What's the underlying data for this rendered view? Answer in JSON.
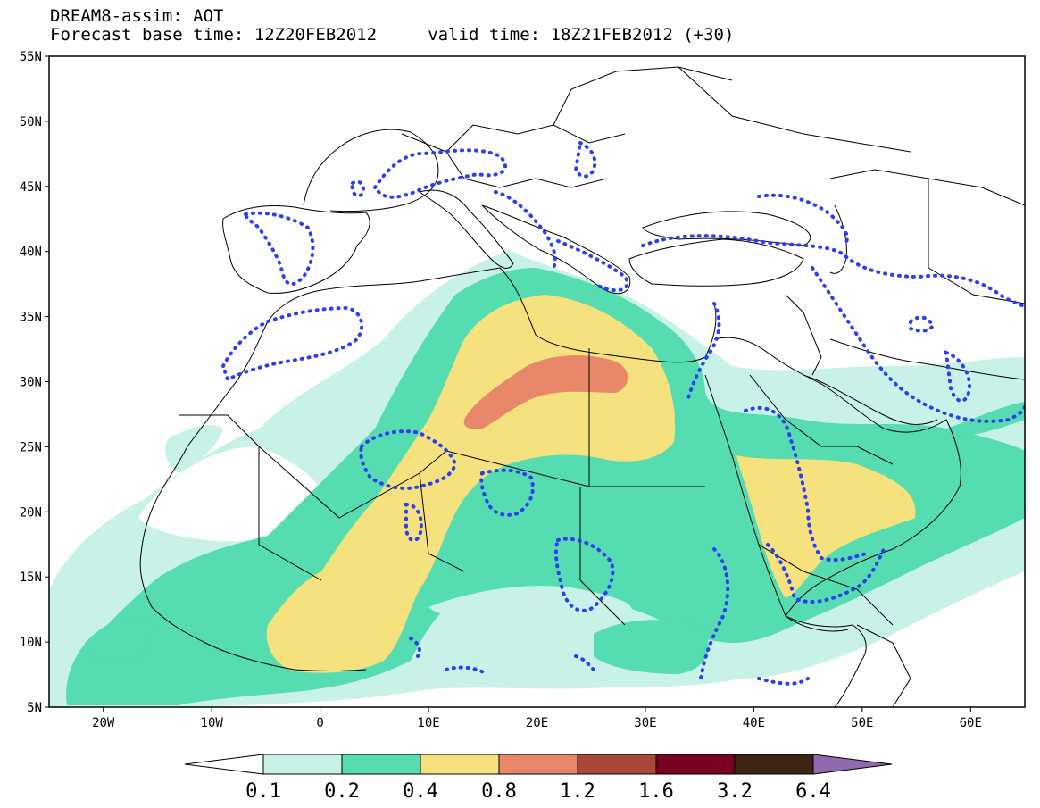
{
  "title": {
    "line1": "DREAM8-assim: AOT",
    "line2": "Forecast base time: 12Z20FEB2012     valid time: 18Z21FEB2012 (+30)"
  },
  "map": {
    "lon_range": [
      -25,
      65
    ],
    "lat_range": [
      5,
      55
    ],
    "lat_ticks": [
      {
        "value": 55,
        "label": "55N"
      },
      {
        "value": 50,
        "label": "50N"
      },
      {
        "value": 45,
        "label": "45N"
      },
      {
        "value": 40,
        "label": "40N"
      },
      {
        "value": 35,
        "label": "35N"
      },
      {
        "value": 30,
        "label": "30N"
      },
      {
        "value": 25,
        "label": "25N"
      },
      {
        "value": 20,
        "label": "20N"
      },
      {
        "value": 15,
        "label": "15N"
      },
      {
        "value": 10,
        "label": "10N"
      },
      {
        "value": 5,
        "label": "5N"
      }
    ],
    "lon_ticks": [
      {
        "value": -20,
        "label": "20W"
      },
      {
        "value": -10,
        "label": "10W"
      },
      {
        "value": 0,
        "label": "0"
      },
      {
        "value": 10,
        "label": "10E"
      },
      {
        "value": 20,
        "label": "20E"
      },
      {
        "value": 30,
        "label": "30E"
      },
      {
        "value": 40,
        "label": "40E"
      },
      {
        "value": 50,
        "label": "50E"
      },
      {
        "value": 60,
        "label": "60E"
      }
    ]
  },
  "colorbar": {
    "labels": [
      "0.1",
      "0.2",
      "0.4",
      "0.8",
      "1.2",
      "1.6",
      "3.2",
      "6.4"
    ],
    "colors": [
      "#ffffff",
      "#c8f2e8",
      "#55dcb0",
      "#f5e17d",
      "#e8876a",
      "#a84838",
      "#7a0020",
      "#3d2414",
      "#8f6ab0"
    ]
  }
}
